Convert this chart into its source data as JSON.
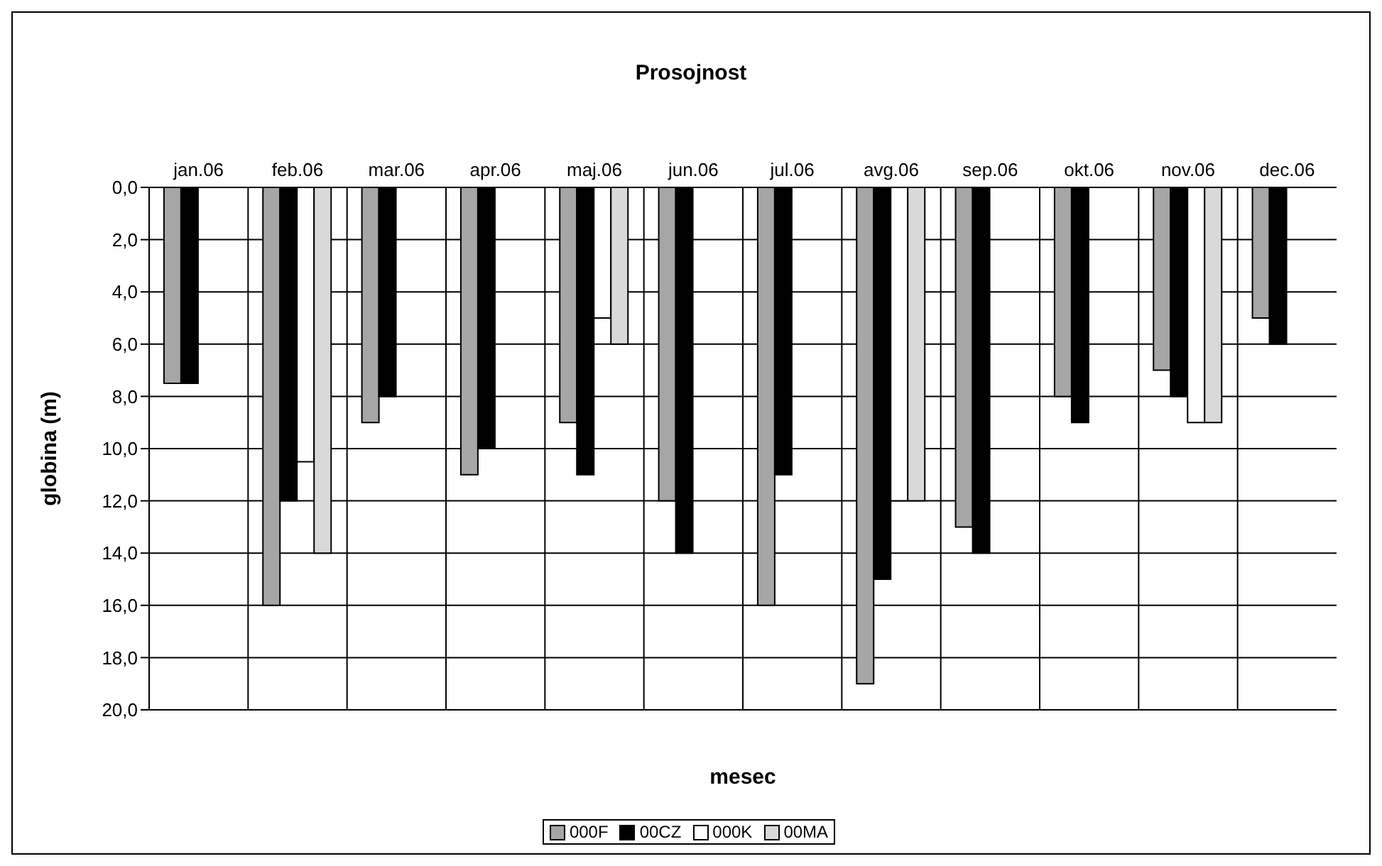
{
  "chart_data": {
    "type": "bar",
    "title": "Prosojnost",
    "xlabel": "mesec",
    "ylabel": "globina (m)",
    "categories": [
      "jan.06",
      "feb.06",
      "mar.06",
      "apr.06",
      "maj.06",
      "jun.06",
      "jul.06",
      "avg.06",
      "sep.06",
      "okt.06",
      "nov.06",
      "dec.06"
    ],
    "series": [
      {
        "name": "000F",
        "color": "#a6a6a6",
        "values": [
          7.5,
          16,
          9,
          11,
          9,
          12,
          16,
          19,
          13,
          8,
          7,
          5
        ]
      },
      {
        "name": "00CZ",
        "color": "#000000",
        "values": [
          7.5,
          12,
          8,
          10,
          11,
          14,
          11,
          15,
          14,
          9,
          8,
          6
        ]
      },
      {
        "name": "000K",
        "color": "#ffffff",
        "values": [
          null,
          10.5,
          null,
          null,
          5,
          null,
          null,
          12,
          null,
          null,
          9,
          null
        ]
      },
      {
        "name": "00MA",
        "color": "#d9d9d9",
        "values": [
          null,
          14,
          null,
          null,
          6,
          null,
          null,
          12,
          null,
          null,
          9,
          null
        ]
      }
    ],
    "ylim": [
      20,
      0
    ],
    "yticks": [
      {
        "value": 0,
        "label": "0,0"
      },
      {
        "value": 2,
        "label": "2,0"
      },
      {
        "value": 4,
        "label": "4,0"
      },
      {
        "value": 6,
        "label": "6,0"
      },
      {
        "value": 8,
        "label": "8,0"
      },
      {
        "value": 10,
        "label": "10,0"
      },
      {
        "value": 12,
        "label": "12,0"
      },
      {
        "value": 14,
        "label": "14,0"
      },
      {
        "value": 16,
        "label": "16,0"
      },
      {
        "value": 18,
        "label": "18,0"
      },
      {
        "value": 20,
        "label": "20,0"
      }
    ],
    "grid": true,
    "legend": "bottom"
  }
}
